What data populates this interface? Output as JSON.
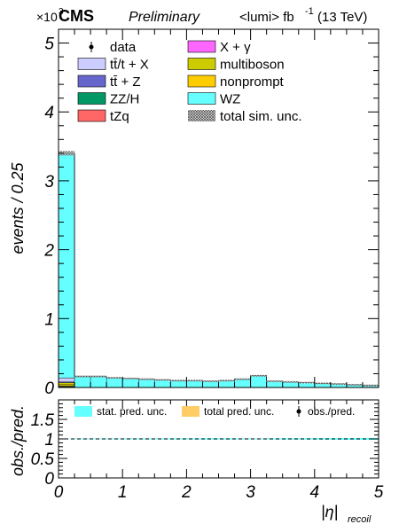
{
  "header": {
    "cms": "CMS",
    "preliminary": "Preliminary",
    "lumi": "<lumi> fb",
    "lumi_exp": "-1",
    "energy": "(13 TeV)",
    "multiplier": "×10",
    "multiplier_exp": "3"
  },
  "legend_top": [
    {
      "label": "data",
      "kind": "data"
    },
    {
      "label": "X + γ",
      "color": "#ff66ff"
    },
    {
      "label": "tt̄/t + X",
      "color": "#ccccff"
    },
    {
      "label": "multiboson",
      "color": "#cccc00"
    },
    {
      "label": "tt̄ + Z",
      "color": "#6666cc"
    },
    {
      "label": "nonprompt",
      "color": "#ffcc00"
    },
    {
      "label": "ZZ/H",
      "color": "#009966"
    },
    {
      "label": "WZ",
      "color": "#66ffff"
    },
    {
      "label": "tZq",
      "color": "#ff6666"
    },
    {
      "label": "total sim. unc.",
      "kind": "hatch"
    }
  ],
  "legend_ratio": [
    {
      "label": "stat. pred. unc.",
      "color": "#66ffff"
    },
    {
      "label": "total pred. unc.",
      "color": "#ffcc66"
    },
    {
      "label": "obs./pred.",
      "kind": "data"
    }
  ],
  "chart_data": [
    {
      "type": "bar",
      "stacked": true,
      "ylabel": "events / 0.25",
      "y_multiplier": "×10^3",
      "xlim": [
        0,
        5
      ],
      "ylim": [
        0,
        5.2
      ],
      "yticks": [
        0,
        1,
        2,
        3,
        4,
        5
      ],
      "bin_edges": [
        0,
        0.25,
        0.5,
        0.75,
        1.0,
        1.25,
        1.5,
        1.75,
        2.0,
        2.25,
        2.5,
        2.75,
        3.0,
        3.25,
        3.5,
        3.75,
        4.0,
        4.25,
        4.5,
        4.75,
        5.0
      ],
      "series": [
        {
          "name": "tZq",
          "color": "#ff6666",
          "values": [
            0.01,
            0,
            0,
            0,
            0,
            0,
            0,
            0,
            0,
            0,
            0,
            0,
            0,
            0,
            0,
            0,
            0,
            0,
            0,
            0
          ]
        },
        {
          "name": "ZZ/H",
          "color": "#009966",
          "values": [
            0.01,
            0,
            0,
            0,
            0,
            0,
            0,
            0,
            0,
            0,
            0,
            0,
            0,
            0,
            0,
            0,
            0,
            0,
            0,
            0
          ]
        },
        {
          "name": "nonprompt",
          "color": "#ffcc00",
          "values": [
            0.02,
            0,
            0,
            0,
            0,
            0,
            0,
            0,
            0,
            0,
            0,
            0,
            0,
            0,
            0,
            0,
            0,
            0,
            0,
            0
          ]
        },
        {
          "name": "multiboson",
          "color": "#cccc00",
          "values": [
            0.03,
            0,
            0,
            0,
            0,
            0,
            0,
            0,
            0,
            0,
            0,
            0,
            0,
            0,
            0,
            0,
            0,
            0,
            0,
            0
          ]
        },
        {
          "name": "tt̄ + Z",
          "color": "#6666cc",
          "values": [
            0.01,
            0,
            0,
            0,
            0,
            0,
            0,
            0,
            0,
            0,
            0,
            0,
            0,
            0,
            0,
            0,
            0,
            0,
            0,
            0
          ]
        },
        {
          "name": "tt̄/t + X",
          "color": "#ccccff",
          "values": [
            0.06,
            0,
            0,
            0,
            0,
            0,
            0,
            0,
            0,
            0,
            0,
            0,
            0,
            0,
            0,
            0,
            0,
            0,
            0,
            0
          ]
        },
        {
          "name": "WZ",
          "color": "#66ffff",
          "values": [
            3.26,
            0.16,
            0.16,
            0.14,
            0.13,
            0.12,
            0.11,
            0.1,
            0.1,
            0.09,
            0.1,
            0.12,
            0.17,
            0.09,
            0.08,
            0.07,
            0.06,
            0.05,
            0.04,
            0.03
          ]
        }
      ],
      "total": [
        3.4,
        0.16,
        0.16,
        0.14,
        0.13,
        0.12,
        0.11,
        0.1,
        0.1,
        0.09,
        0.1,
        0.12,
        0.17,
        0.09,
        0.08,
        0.07,
        0.06,
        0.05,
        0.04,
        0.03
      ]
    },
    {
      "type": "line",
      "ylabel": "obs./pred.",
      "xlabel": "|η|",
      "xlabel_sub": "recoil",
      "xlim": [
        0,
        5
      ],
      "ylim": [
        0,
        2
      ],
      "yticks": [
        0,
        0.5,
        1,
        1.5
      ],
      "ytick_labels": [
        "0",
        "0.5",
        "1",
        "1.5"
      ],
      "xticks": [
        0,
        1,
        2,
        3,
        4,
        5
      ],
      "reference_line": 1,
      "stat_unc": [
        0.004,
        0.012,
        0.012,
        0.012,
        0.014,
        0.014,
        0.014,
        0.016,
        0.016,
        0.018,
        0.016,
        0.014,
        0.012,
        0.016,
        0.018,
        0.018,
        0.02,
        0.022,
        0.022,
        0.024
      ]
    }
  ]
}
